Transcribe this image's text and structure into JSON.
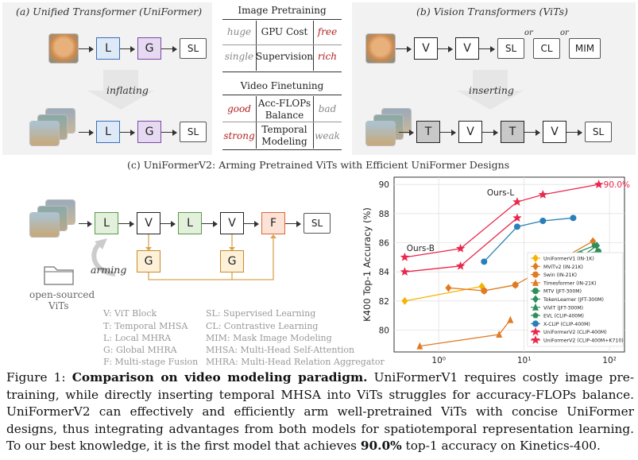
{
  "panel_a": {
    "title": "(a) Unified Transformer (UniFormer)",
    "l": "L",
    "g": "G",
    "sl": "SL",
    "inflating": "inflating"
  },
  "panel_b": {
    "title": "(b) Vision Transformers (ViTs)",
    "v": "V",
    "t": "T",
    "sl": "SL",
    "cl": "CL",
    "mim": "MIM",
    "or": "or",
    "inserting": "inserting"
  },
  "table": {
    "pretrain_title": "Image Pretraining",
    "pretrain_rows": [
      {
        "left": "huge",
        "mid": "GPU Cost",
        "right": "free"
      },
      {
        "left": "single",
        "mid": "Supervision",
        "right": "rich"
      }
    ],
    "finetune_title": "Video Finetuning",
    "finetune_rows": [
      {
        "left": "good",
        "mid1": "Acc-FLOPs",
        "mid2": "Balance",
        "right": "bad"
      },
      {
        "left": "strong",
        "mid1": "Temporal",
        "mid2": "Modeling",
        "right": "weak"
      }
    ]
  },
  "panel_c": {
    "title": "(c) UniFormerV2: Arming Pretrained ViTs with Efficient UniFormer Designs",
    "l": "L",
    "v": "V",
    "g": "G",
    "f": "F",
    "sl": "SL",
    "arming": "arming",
    "open_sourced": "open-sourced",
    "vits": "ViTs",
    "legend_left": [
      "V: ViT Block",
      "T: Temporal MHSA",
      "L: Local MHRA",
      "G: Global MHRA",
      "F: Multi-stage Fusion"
    ],
    "legend_right": [
      "SL: Supervised Learning",
      "CL: Contrastive Learning",
      "MIM: Mask Image Modeling",
      "MHSA: Multi-Head Self-Attention",
      "MHRA: Multi-Head Relation Aggregator"
    ]
  },
  "colors": {
    "uniformer_v2": "#e8294d",
    "uniformer_v1": "#f5b400",
    "mvitv2": "#e07b24",
    "swin": "#e07b24",
    "timesformer": "#e07b24",
    "mtv": "#2f8f5b",
    "tokenlearner": "#2f8f5b",
    "vivit": "#2f8f5b",
    "evl": "#2f8f5b",
    "xclip": "#2a7fb8"
  },
  "chart_data": {
    "type": "line",
    "xlabel": "FLOPs/Videos (T)",
    "ylabel": "K400 Top-1 Accuracy (%)",
    "xscale": "log",
    "xlim": [
      0.3,
      150
    ],
    "ylim": [
      78.5,
      90.5
    ],
    "xticks": [
      "10⁰",
      "10¹",
      "10²"
    ],
    "yticks": [
      "80",
      "82",
      "84",
      "86",
      "88",
      "90"
    ],
    "grid": true,
    "legend_position": "bottom-right",
    "annotations": [
      {
        "text": "Ours-B",
        "x": 0.42,
        "y": 85.0
      },
      {
        "text": "Ours-L",
        "x": 8.3,
        "y": 88.8
      },
      {
        "text": "90.0%",
        "x": 75,
        "y": 90.0
      }
    ],
    "series": [
      {
        "name": "UniFormerV1 (IN-1K)",
        "marker": "diamond",
        "color": "#f5b400",
        "x": [
          0.4,
          3.2
        ],
        "y": [
          82.0,
          83.0
        ]
      },
      {
        "name": "MViTv2 (IN-21K)",
        "marker": "diamond",
        "color": "#e07b24",
        "x": [
          1.3,
          3.4,
          7.9,
          64
        ],
        "y": [
          82.9,
          82.7,
          83.1,
          86.1
        ]
      },
      {
        "name": "Swin (IN-21K)",
        "marker": "circle",
        "color": "#e07b24",
        "x": [
          3.4,
          7.9
        ],
        "y": [
          82.7,
          83.1
        ]
      },
      {
        "name": "Timesformer (IN-21K)",
        "marker": "triangle",
        "color": "#e07b24",
        "x": [
          0.6,
          5.1,
          6.9
        ],
        "y": [
          78.9,
          79.7,
          80.7
        ]
      },
      {
        "name": "MTV (JFT-300M)",
        "marker": "circle",
        "color": "#2f8f5b",
        "x": [
          19,
          46,
          74
        ],
        "y": [
          84.7,
          85.2,
          85.4
        ]
      },
      {
        "name": "TokenLearner (JFT-300M)",
        "marker": "diamond",
        "color": "#2f8f5b",
        "x": [
          17,
          49,
          71
        ],
        "y": [
          84.4,
          85.1,
          85.8
        ]
      },
      {
        "name": "ViViT (JFT-300M)",
        "marker": "triangle",
        "color": "#2f8f5b",
        "x": [
          12,
          48
        ],
        "y": [
          83.6,
          84.9
        ]
      },
      {
        "name": "EVL (CLIP-400M)",
        "marker": "pentagon",
        "color": "#2f8f5b",
        "x": [
          16,
          27,
          67
        ],
        "y": [
          84.3,
          84.9,
          85.8
        ]
      },
      {
        "name": "X-CLIP (CLIP-400M)",
        "marker": "circle",
        "color": "#2a7fb8",
        "x": [
          3.4,
          8.3,
          16.6,
          37.6
        ],
        "y": [
          84.7,
          87.1,
          87.5,
          87.7
        ]
      },
      {
        "name": "UniFormerV2 (CLIP-400M)",
        "marker": "star",
        "color": "#e8294d",
        "x": [
          0.4,
          1.8,
          8.3
        ],
        "y": [
          84.0,
          84.4,
          87.7
        ]
      },
      {
        "name": "UniFormerV2 (CLIP-400M+K710)",
        "marker": "star",
        "color": "#e8294d",
        "x": [
          0.4,
          1.8,
          8.3,
          16.6,
          75
        ],
        "y": [
          85.0,
          85.6,
          88.8,
          89.3,
          90.0
        ]
      }
    ]
  },
  "caption": {
    "fig_label": "Figure 1: ",
    "bold": "Comparison on video modeling paradigm.",
    "text1": " UniFormerV1 requires costly image pre-training, while directly inserting temporal MHSA into ViTs struggles for accuracy-FLOPs balance. UniFormerV2 can effectively and efficiently arm well-pretrained ViTs with concise UniFormer designs, thus integrating advantages from both models for spatiotemporal representation learning. To our best knowledge, it is the first model that achieves ",
    "bold2": "90.0%",
    "text2": " top-1 accuracy on Kinetics-400."
  }
}
